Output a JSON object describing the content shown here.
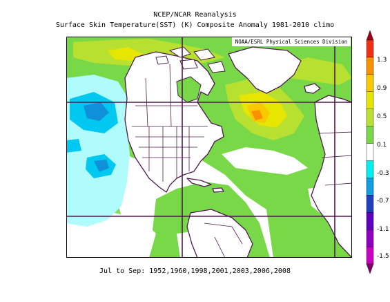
{
  "header": {
    "line1": "NCEP/NCAR Reanalysis",
    "line2": "Surface Skin Temperature(SST) (K) Composite Anomaly 1981-2010 climo"
  },
  "credit": "NOAA/ESRL Physical Sciences Division",
  "footer": "Jul to Sep: 1952,1960,1998,2001,2003,2006,2008",
  "legend": {
    "tick_labels": [
      "1.3",
      "0.9",
      "0.5",
      "0.1",
      "-0.3",
      "-0.7",
      "-1.1",
      "-1.5"
    ],
    "colors": [
      "#a0001a",
      "#f03010",
      "#f89000",
      "#f8c800",
      "#e6e600",
      "#b8e030",
      "#78d848",
      "#ffffff",
      "#00f0f0",
      "#10a0e0",
      "#2040c0",
      "#6000c0",
      "#9000c0",
      "#c800c0",
      "#80006a"
    ]
  },
  "map": {
    "region": "North Atlantic / North America",
    "palette": {
      "land": "#ffffff",
      "coast": "#4b1a4b",
      "near_zero": "#ffffff",
      "pos_small": "#78d848",
      "pos_med": "#b8e030",
      "pos_high": "#e6e600",
      "pos_higher": "#f8c800",
      "pos_max": "#f89000",
      "neg_small": "#b0fcfc",
      "neg_med": "#00c8f0",
      "neg_high": "#1090d8"
    }
  }
}
